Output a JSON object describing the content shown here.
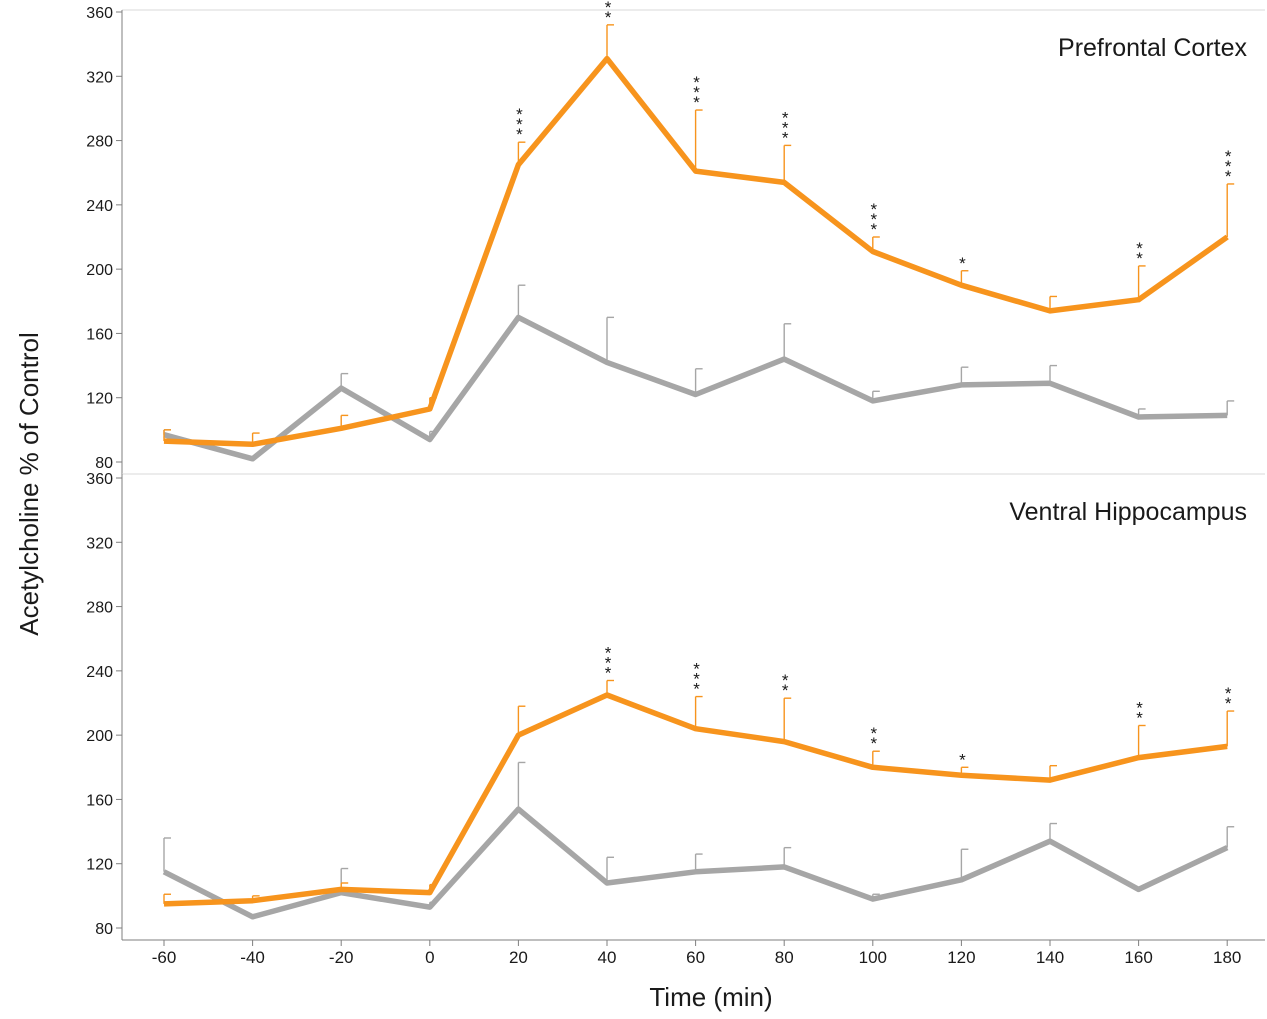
{
  "chart_data": [
    {
      "type": "line",
      "title": "Prefrontal Cortex",
      "ylim": [
        80,
        360
      ],
      "yticks": [
        80,
        120,
        160,
        200,
        240,
        280,
        320,
        360
      ],
      "x": [
        -60,
        -40,
        -20,
        0,
        20,
        40,
        60,
        80,
        100,
        120,
        140,
        160,
        180
      ],
      "series": [
        {
          "color": "#f7941d",
          "values": [
            93,
            91,
            101,
            113,
            265,
            331,
            261,
            254,
            211,
            190,
            174,
            181,
            220
          ],
          "error_upper": [
            100,
            98,
            109,
            120,
            279,
            352,
            299,
            277,
            220,
            199,
            183,
            202,
            253
          ],
          "significance": [
            "",
            "",
            "",
            "",
            "***",
            "***",
            "***",
            "***",
            "***",
            "*",
            "",
            "**",
            "***"
          ]
        },
        {
          "color": "#a6a6a6",
          "values": [
            97,
            82,
            126,
            94,
            170,
            142,
            122,
            144,
            118,
            128,
            129,
            108,
            109
          ],
          "error_upper": [
            100,
            82,
            135,
            99,
            190,
            170,
            138,
            166,
            124,
            139,
            140,
            113,
            118
          ],
          "significance": [
            "",
            "",
            "",
            "",
            "",
            "",
            "",
            "",
            "",
            "",
            "",
            "",
            ""
          ]
        }
      ]
    },
    {
      "type": "line",
      "title": "Ventral Hippocampus",
      "ylim": [
        80,
        360
      ],
      "yticks": [
        80,
        120,
        160,
        200,
        240,
        280,
        320,
        360
      ],
      "xlabel": "Time (min)",
      "x": [
        -60,
        -40,
        -20,
        0,
        20,
        40,
        60,
        80,
        100,
        120,
        140,
        160,
        180
      ],
      "xticks": [
        "-60",
        "-40",
        "-20",
        "0",
        "20",
        "40",
        "60",
        "80",
        "100",
        "120",
        "140",
        "160",
        "180"
      ],
      "series": [
        {
          "color": "#f7941d",
          "values": [
            95,
            97,
            104,
            102,
            200,
            225,
            204,
            196,
            180,
            175,
            172,
            186,
            193
          ],
          "error_upper": [
            101,
            100,
            108,
            107,
            218,
            234,
            224,
            223,
            190,
            180,
            181,
            206,
            215
          ],
          "significance": [
            "",
            "",
            "",
            "",
            "",
            "***",
            "***",
            "**",
            "**",
            "*",
            "",
            "**",
            "**"
          ]
        },
        {
          "color": "#a6a6a6",
          "values": [
            115,
            87,
            102,
            93,
            154,
            108,
            115,
            118,
            98,
            110,
            134,
            104,
            130
          ],
          "error_upper": [
            136,
            87,
            117,
            96,
            183,
            124,
            126,
            130,
            101,
            129,
            145,
            104,
            143
          ],
          "significance": [
            "",
            "",
            "",
            "",
            "",
            "",
            "",
            "",
            "",
            "",
            "",
            "",
            ""
          ]
        }
      ]
    }
  ],
  "ylabel": "Acetylcholine % of Control"
}
